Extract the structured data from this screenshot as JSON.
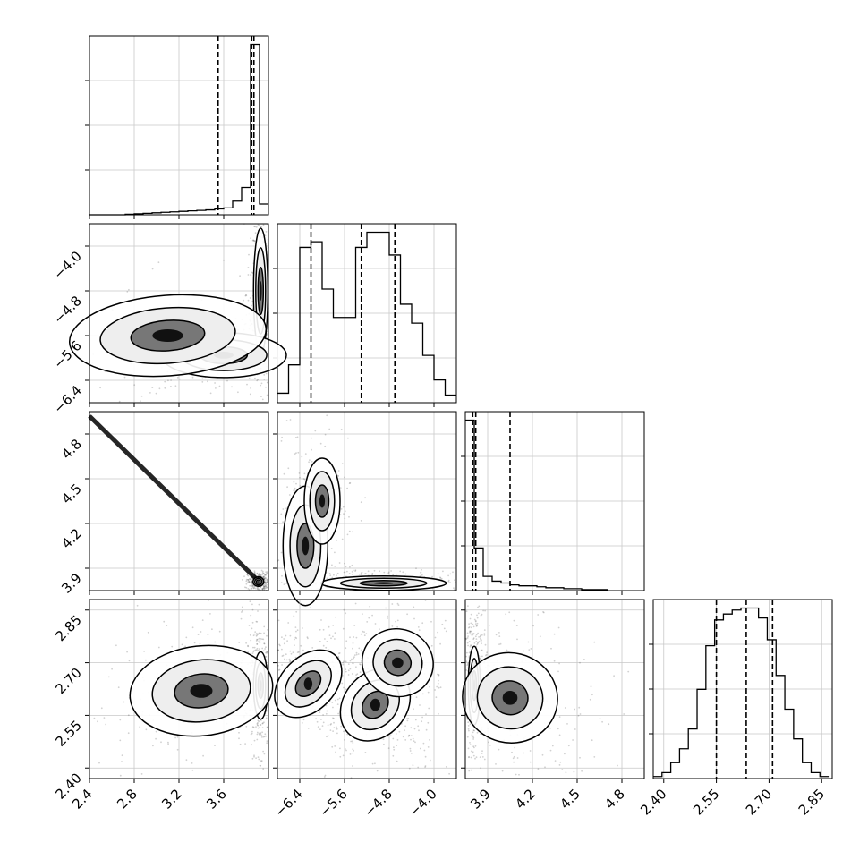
{
  "chart_data": {
    "type": "corner",
    "grid": true,
    "parameters": [
      {
        "range": [
          2.4,
          4.0
        ],
        "ticks": [
          2.4,
          2.8,
          3.2,
          3.6
        ],
        "tick_labels": [
          "2.4",
          "2.8",
          "3.2",
          "3.6"
        ],
        "quantiles": [
          3.55,
          3.85,
          3.87
        ],
        "histogram": {
          "bin_edges": [
            2.4,
            2.48,
            2.56,
            2.64,
            2.72,
            2.8,
            2.88,
            2.96,
            3.04,
            3.12,
            3.2,
            3.28,
            3.36,
            3.44,
            3.52,
            3.6,
            3.68,
            3.76,
            3.84,
            3.92,
            4.0
          ],
          "counts": [
            0,
            0,
            0,
            0,
            0.5,
            1,
            1.5,
            2,
            2.5,
            3,
            3.5,
            4,
            4.5,
            5,
            6,
            7,
            14,
            28,
            175,
            11
          ]
        }
      },
      {
        "range": [
          -6.8,
          -3.6
        ],
        "ticks": [
          -6.4,
          -5.6,
          -4.8,
          -4.0
        ],
        "tick_labels": [
          "−6.4",
          "−5.6",
          "−4.8",
          "−4.0"
        ],
        "quantiles": [
          -6.2,
          -5.3,
          -4.7
        ],
        "histogram": {
          "bin_edges": [
            -6.8,
            -6.6,
            -6.4,
            -6.2,
            -6.0,
            -5.8,
            -5.6,
            -5.4,
            -5.2,
            -5.0,
            -4.8,
            -4.6,
            -4.4,
            -4.2,
            -4.0,
            -3.8,
            -3.6
          ],
          "counts": [
            5,
            20,
            82,
            85,
            60,
            45,
            45,
            82,
            90,
            90,
            78,
            52,
            42,
            25,
            12,
            4
          ]
        }
      },
      {
        "range": [
          3.75,
          4.95
        ],
        "ticks": [
          3.9,
          4.2,
          4.5,
          4.8
        ],
        "tick_labels": [
          "3.9",
          "4.2",
          "4.5",
          "4.8"
        ],
        "quantiles": [
          3.8,
          3.82,
          4.05
        ],
        "histogram": {
          "bin_edges": [
            3.75,
            3.81,
            3.87,
            3.93,
            3.99,
            4.05,
            4.11,
            4.17,
            4.23,
            4.29,
            4.35,
            4.41,
            4.47,
            4.53,
            4.59,
            4.65,
            4.71
          ],
          "counts": [
            180,
            45,
            15,
            10,
            8,
            6,
            5,
            5,
            4,
            3,
            3,
            2,
            2,
            1,
            1,
            1
          ]
        }
      },
      {
        "range": [
          2.37,
          2.88
        ],
        "ticks": [
          2.4,
          2.55,
          2.7,
          2.85
        ],
        "tick_labels": [
          "2.40",
          "2.55",
          "2.70",
          "2.85"
        ],
        "quantiles": [
          2.55,
          2.635,
          2.71
        ],
        "histogram": {
          "bin_edges": [
            2.37,
            2.395,
            2.42,
            2.445,
            2.47,
            2.495,
            2.52,
            2.545,
            2.57,
            2.595,
            2.62,
            2.645,
            2.67,
            2.695,
            2.72,
            2.745,
            2.77,
            2.795,
            2.82,
            2.845,
            2.87
          ],
          "counts": [
            1,
            3,
            8,
            15,
            25,
            45,
            67,
            80,
            83,
            85,
            86,
            86,
            81,
            70,
            52,
            35,
            20,
            8,
            3,
            1
          ]
        }
      }
    ],
    "joint_densities": [
      {
        "x": 0,
        "y": 1,
        "blobs": [
          {
            "cx": 3.93,
            "cy": -4.8,
            "sx": 0.04,
            "sy": 0.7,
            "rho": 0,
            "w": 0.55
          },
          {
            "cx": 3.6,
            "cy": -5.95,
            "sx": 0.35,
            "sy": 0.25,
            "rho": 0,
            "w": 0.35
          },
          {
            "cx": 3.1,
            "cy": -5.6,
            "sx": 0.55,
            "sy": 0.45,
            "rho": 0.2,
            "w": 0.1
          }
        ]
      },
      {
        "x": 0,
        "y": 2,
        "line": {
          "x0": 2.4,
          "y0": 4.92,
          "x1": 3.93,
          "y1": 3.8
        },
        "blobs": [
          {
            "cx": 3.91,
            "cy": 3.81,
            "sx": 0.03,
            "sy": 0.02,
            "rho": 0,
            "w": 0.5
          }
        ]
      },
      {
        "x": 0,
        "y": 3,
        "blobs": [
          {
            "cx": 3.93,
            "cy": 2.635,
            "sx": 0.04,
            "sy": 0.06,
            "rho": 0,
            "w": 0.6
          },
          {
            "cx": 3.4,
            "cy": 2.62,
            "sx": 0.4,
            "sy": 0.08,
            "rho": 0.2,
            "w": 0.4
          }
        ]
      },
      {
        "x": 1,
        "y": 2,
        "blobs": [
          {
            "cx": -4.9,
            "cy": 3.8,
            "sx": 0.7,
            "sy": 0.03,
            "rho": 0,
            "w": 0.55
          },
          {
            "cx": -6.3,
            "cy": 4.05,
            "sx": 0.25,
            "sy": 0.25,
            "rho": 0,
            "w": 0.3
          },
          {
            "cx": -6.0,
            "cy": 4.35,
            "sx": 0.2,
            "sy": 0.18,
            "rho": 0,
            "w": 0.15
          }
        ]
      },
      {
        "x": 1,
        "y": 3,
        "blobs": [
          {
            "cx": -6.25,
            "cy": 2.64,
            "sx": 0.3,
            "sy": 0.07,
            "rho": -0.8,
            "w": 0.35
          },
          {
            "cx": -5.05,
            "cy": 2.58,
            "sx": 0.35,
            "sy": 0.07,
            "rho": -0.8,
            "w": 0.35
          },
          {
            "cx": -4.65,
            "cy": 2.7,
            "sx": 0.4,
            "sy": 0.06,
            "rho": -0.4,
            "w": 0.3
          }
        ]
      },
      {
        "x": 2,
        "y": 3,
        "blobs": [
          {
            "cx": 3.81,
            "cy": 2.635,
            "sx": 0.025,
            "sy": 0.07,
            "rho": 0,
            "w": 0.6
          },
          {
            "cx": 4.05,
            "cy": 2.6,
            "sx": 0.2,
            "sy": 0.08,
            "rho": -0.3,
            "w": 0.4
          }
        ]
      }
    ]
  }
}
